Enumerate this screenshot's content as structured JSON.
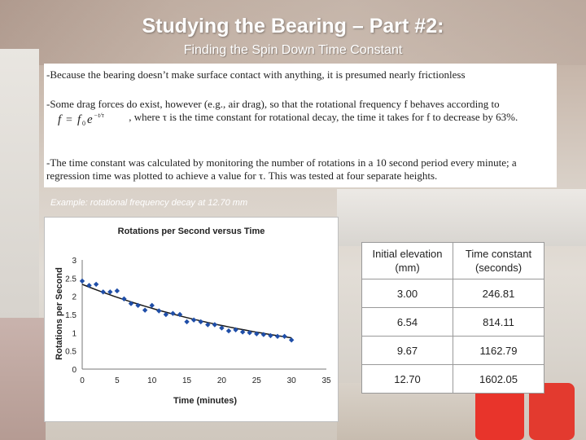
{
  "slide": {
    "title": "Studying the Bearing – Part #2:",
    "subtitle": "Finding the Spin Down Time Constant",
    "paragraph1": "-Because the bearing doesn’t make surface contact with anything, it is presumed nearly frictionless",
    "paragraph2_before": "-Some drag forces do exist, however (e.g., air drag), so that the rotational frequency f behaves according to",
    "formula": "f = f₀e^(−t/τ)",
    "paragraph2_after": ", where τ is the time constant for rotational decay, the time it takes for f to decrease by 63%.",
    "paragraph3": "-The time constant was calculated by monitoring the number of rotations in a 10 second period every minute; a regression time was plotted to achieve a value for τ.  This was tested at four separate heights.",
    "example_caption": "Example: rotational frequency decay at 12.70 mm"
  },
  "table": {
    "headers": [
      "Initial elevation (mm)",
      "Time constant (seconds)"
    ],
    "rows": [
      [
        "3.00",
        "246.81"
      ],
      [
        "6.54",
        "814.11"
      ],
      [
        "9.67",
        "1162.79"
      ],
      [
        "12.70",
        "1602.05"
      ]
    ]
  },
  "chart_data": {
    "type": "scatter",
    "title": "Rotations per Second versus Time",
    "xlabel": "Time (minutes)",
    "ylabel": "Rotations per Second",
    "xlim": [
      0,
      35
    ],
    "ylim": [
      0,
      3
    ],
    "xticks": [
      0,
      5,
      10,
      15,
      20,
      25,
      30,
      35
    ],
    "yticks": [
      0,
      0.5,
      1,
      1.5,
      2,
      2.5,
      3
    ],
    "grid": false,
    "legend": "none",
    "marker_color": "#1f4ea8",
    "trendline": {
      "type": "exponential",
      "color": "#1a1a1a",
      "x_range": [
        0,
        30
      ],
      "y_start": 2.33,
      "y_end": 0.86
    },
    "points": [
      {
        "x": 0,
        "y": 2.42
      },
      {
        "x": 1,
        "y": 2.3
      },
      {
        "x": 2,
        "y": 2.33
      },
      {
        "x": 3,
        "y": 2.12
      },
      {
        "x": 4,
        "y": 2.12
      },
      {
        "x": 5,
        "y": 2.15
      },
      {
        "x": 6,
        "y": 1.93
      },
      {
        "x": 7,
        "y": 1.8
      },
      {
        "x": 8,
        "y": 1.75
      },
      {
        "x": 9,
        "y": 1.62
      },
      {
        "x": 10,
        "y": 1.75
      },
      {
        "x": 11,
        "y": 1.6
      },
      {
        "x": 12,
        "y": 1.5
      },
      {
        "x": 13,
        "y": 1.53
      },
      {
        "x": 14,
        "y": 1.5
      },
      {
        "x": 15,
        "y": 1.3
      },
      {
        "x": 16,
        "y": 1.35
      },
      {
        "x": 17,
        "y": 1.3
      },
      {
        "x": 18,
        "y": 1.22
      },
      {
        "x": 19,
        "y": 1.22
      },
      {
        "x": 20,
        "y": 1.13
      },
      {
        "x": 21,
        "y": 1.05
      },
      {
        "x": 22,
        "y": 1.08
      },
      {
        "x": 23,
        "y": 1.02
      },
      {
        "x": 24,
        "y": 1.0
      },
      {
        "x": 25,
        "y": 0.97
      },
      {
        "x": 26,
        "y": 0.95
      },
      {
        "x": 27,
        "y": 0.92
      },
      {
        "x": 28,
        "y": 0.9
      },
      {
        "x": 29,
        "y": 0.9
      },
      {
        "x": 30,
        "y": 0.8
      }
    ]
  }
}
